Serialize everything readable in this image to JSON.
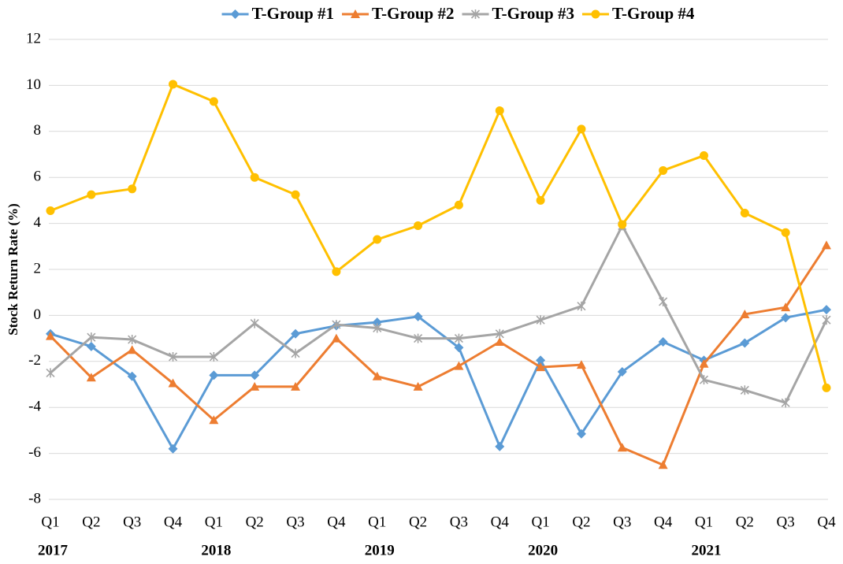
{
  "chart_data": {
    "type": "line",
    "y_label": "Stock Return Rate (%)",
    "categories": [
      "Q1",
      "Q2",
      "Q3",
      "Q4",
      "Q1",
      "Q2",
      "Q3",
      "Q4",
      "Q1",
      "Q2",
      "Q3",
      "Q4",
      "Q1",
      "Q2",
      "Q3",
      "Q4",
      "Q1",
      "Q2",
      "Q3",
      "Q4"
    ],
    "years": [
      "2017",
      null,
      null,
      null,
      "2018",
      null,
      null,
      null,
      "2019",
      null,
      null,
      null,
      "2020",
      null,
      null,
      null,
      "2021",
      null,
      null,
      null
    ],
    "ylim": [
      -8,
      12
    ],
    "yticks": [
      -8,
      -6,
      -4,
      -2,
      0,
      2,
      4,
      6,
      8,
      10,
      12
    ],
    "grid": true,
    "legend": "top",
    "series": [
      {
        "name": "T-Group #1",
        "color": "#5b9bd5",
        "marker": "diamond",
        "values": [
          -0.8,
          -1.35,
          -2.65,
          -5.8,
          -2.6,
          -2.6,
          -0.8,
          -0.45,
          -0.3,
          -0.05,
          -1.4,
          -5.7,
          -1.95,
          -5.15,
          -2.45,
          -1.15,
          -1.95,
          -1.2,
          -0.1,
          0.25
        ]
      },
      {
        "name": "T-Group #2",
        "color": "#ed7d31",
        "marker": "triangle",
        "values": [
          -0.9,
          -2.7,
          -1.5,
          -2.95,
          -4.55,
          -3.1,
          -3.1,
          -1.0,
          -2.65,
          -3.1,
          -2.2,
          -1.15,
          -2.25,
          -2.15,
          -5.75,
          -6.5,
          -2.1,
          0.05,
          0.35,
          3.05
        ]
      },
      {
        "name": "T-Group #3",
        "color": "#a5a5a5",
        "marker": "star",
        "values": [
          -2.5,
          -0.95,
          -1.05,
          -1.8,
          -1.8,
          -0.35,
          -1.65,
          -0.4,
          -0.55,
          -1.0,
          -1.0,
          -0.8,
          -0.2,
          0.4,
          3.9,
          0.6,
          -2.8,
          -3.25,
          -3.8,
          -0.2
        ]
      },
      {
        "name": "T-Group #4",
        "color": "#ffc000",
        "marker": "circle",
        "values": [
          4.55,
          5.25,
          5.5,
          10.05,
          9.3,
          6.0,
          5.25,
          1.9,
          3.3,
          3.9,
          4.8,
          8.9,
          5.0,
          8.1,
          3.95,
          6.3,
          6.95,
          4.45,
          3.6,
          -3.15
        ]
      }
    ]
  }
}
